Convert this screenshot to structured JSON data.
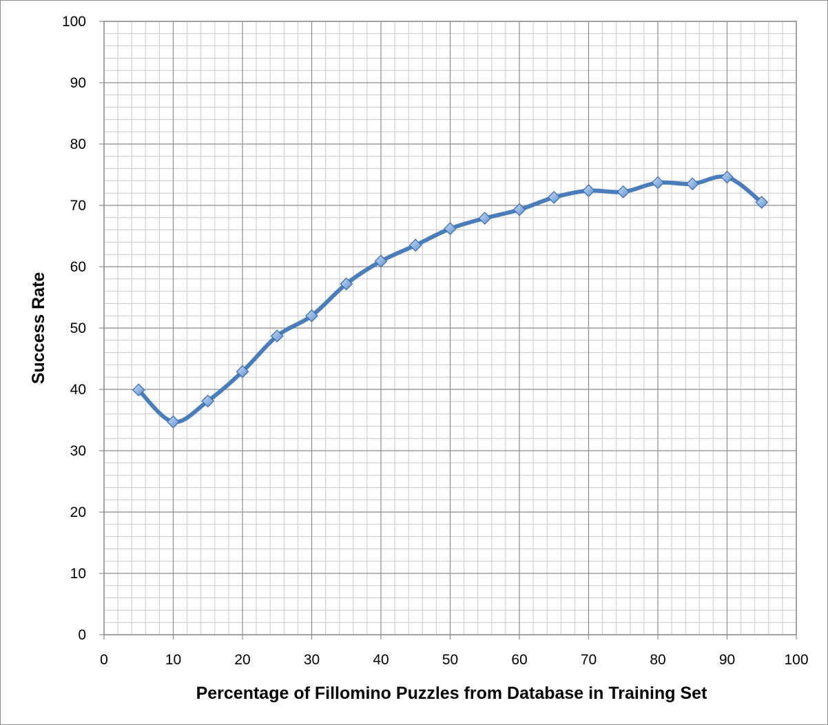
{
  "chart_data": {
    "type": "line",
    "title": "",
    "xlabel": "Percentage of Fillomino Puzzles from Database in Training Set",
    "ylabel": "Success Rate",
    "xlim": [
      0,
      100
    ],
    "ylim": [
      0,
      100
    ],
    "x_ticks": [
      0,
      10,
      20,
      30,
      40,
      50,
      60,
      70,
      80,
      90,
      100
    ],
    "y_ticks": [
      0,
      10,
      20,
      30,
      40,
      50,
      60,
      70,
      80,
      90,
      100
    ],
    "grid": true,
    "minor_grid": true,
    "smooth": true,
    "marker": "diamond",
    "legend": "none",
    "series": [
      {
        "x": [
          5,
          10,
          15,
          20,
          25,
          30,
          35,
          40,
          45,
          50,
          55,
          60,
          65,
          70,
          75,
          80,
          85,
          90,
          95
        ],
        "y": [
          39.9,
          34.7,
          38.1,
          42.9,
          48.7,
          52.0,
          57.2,
          60.9,
          63.5,
          66.2,
          67.9,
          69.3,
          71.3,
          72.4,
          72.2,
          73.7,
          73.5,
          74.6,
          70.5
        ],
        "color": "#4a7ebb",
        "marker_color": "#8db3e2"
      }
    ]
  }
}
